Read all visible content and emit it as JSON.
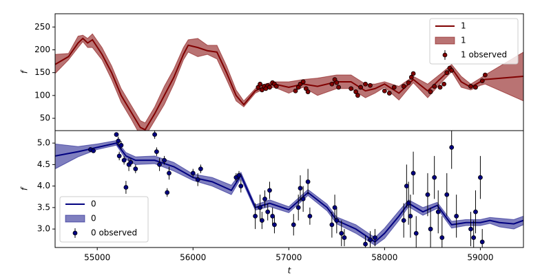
{
  "chart_data": [
    {
      "type": "line",
      "ylabel": "f",
      "xlim": [
        54560,
        59450
      ],
      "ylim": [
        23,
        279
      ],
      "yticks": [
        50,
        100,
        150,
        200,
        250
      ],
      "legend": "upper right",
      "series": [
        {
          "name": "1",
          "type": "line",
          "color": "#800000",
          "x": [
            54560,
            54700,
            54800,
            54850,
            54900,
            54950,
            55050,
            55150,
            55250,
            55350,
            55450,
            55500,
            55600,
            55700,
            55800,
            55900,
            55950,
            56050,
            56150,
            56250,
            56350,
            56450,
            56530,
            56650,
            56750,
            56850,
            57000,
            57150,
            57300,
            57500,
            57650,
            57800,
            57900,
            58000,
            58150,
            58300,
            58450,
            58600,
            58700,
            58800,
            58900,
            59000,
            59050,
            59450
          ],
          "values": [
            168,
            185,
            215,
            225,
            215,
            222,
            190,
            150,
            100,
            65,
            30,
            25,
            60,
            100,
            140,
            190,
            210,
            205,
            198,
            195,
            150,
            100,
            80,
            110,
            120,
            125,
            118,
            125,
            120,
            130,
            130,
            110,
            115,
            125,
            105,
            135,
            110,
            140,
            160,
            130,
            118,
            130,
            135,
            142
          ]
        },
        {
          "name": "1",
          "type": "band",
          "color": "#800000",
          "alpha": 0.55,
          "x": [
            54560,
            54700,
            54800,
            54850,
            54900,
            54950,
            55050,
            55150,
            55250,
            55350,
            55450,
            55500,
            55600,
            55700,
            55800,
            55900,
            55950,
            56050,
            56150,
            56250,
            56350,
            56450,
            56530,
            56650,
            56750,
            56850,
            57000,
            57150,
            57300,
            57500,
            57650,
            57800,
            57900,
            58000,
            58150,
            58300,
            58450,
            58600,
            58700,
            58800,
            58900,
            59000,
            59050,
            59450
          ],
          "lower": [
            148,
            178,
            205,
            218,
            205,
            205,
            178,
            135,
            85,
            50,
            12,
            10,
            45,
            80,
            125,
            178,
            195,
            185,
            190,
            180,
            135,
            88,
            75,
            105,
            115,
            118,
            105,
            118,
            100,
            115,
            115,
            95,
            105,
            118,
            90,
            128,
            95,
            130,
            152,
            118,
            112,
            122,
            125,
            88
          ],
          "upper": [
            190,
            192,
            230,
            232,
            225,
            235,
            205,
            165,
            115,
            80,
            45,
            40,
            75,
            120,
            158,
            205,
            222,
            225,
            210,
            210,
            165,
            112,
            88,
            115,
            125,
            130,
            130,
            135,
            138,
            145,
            145,
            125,
            125,
            130,
            120,
            142,
            125,
            150,
            168,
            142,
            125,
            138,
            145,
            195
          ]
        },
        {
          "name": "1 observed",
          "type": "points",
          "color": "#800000",
          "x": [
            56680,
            56700,
            56720,
            56740,
            56760,
            56780,
            56800,
            56830,
            56850,
            56870,
            57070,
            57100,
            57120,
            57150,
            57180,
            57200,
            57450,
            57480,
            57500,
            57520,
            57650,
            57700,
            57720,
            57750,
            57800,
            57850,
            58000,
            58050,
            58100,
            58200,
            58250,
            58280,
            58300,
            58480,
            58520,
            58580,
            58620,
            58650,
            58680,
            58700,
            58900,
            58950,
            59020,
            59050
          ],
          "values": [
            118,
            125,
            112,
            120,
            115,
            122,
            118,
            128,
            125,
            120,
            110,
            118,
            125,
            130,
            115,
            108,
            125,
            135,
            128,
            118,
            115,
            108,
            100,
            118,
            125,
            122,
            110,
            105,
            118,
            120,
            128,
            140,
            148,
            108,
            120,
            118,
            125,
            150,
            160,
            155,
            120,
            118,
            132,
            145
          ],
          "errors": [
            3,
            3,
            3,
            3,
            3,
            3,
            3,
            3,
            3,
            3,
            3,
            3,
            3,
            3,
            3,
            3,
            3,
            3,
            3,
            3,
            3,
            3,
            3,
            3,
            3,
            3,
            3,
            3,
            3,
            3,
            3,
            3,
            3,
            3,
            3,
            3,
            3,
            3,
            3,
            3,
            3,
            3,
            3,
            3
          ]
        }
      ]
    },
    {
      "type": "line",
      "ylabel": "f",
      "xlabel": "t",
      "xlim": [
        54560,
        59450
      ],
      "ylim": [
        2.57,
        5.29
      ],
      "xticks": [
        55000,
        56000,
        57000,
        58000,
        59000
      ],
      "yticks": [
        {
          "value": 3,
          "label": "3.0"
        },
        3.5,
        {
          "value": 4,
          "label": "4.0"
        },
        4.5,
        {
          "value": 5,
          "label": "5.0"
        }
      ],
      "legend": "lower left",
      "series": [
        {
          "name": "0",
          "type": "line",
          "color": "#000080",
          "x": [
            54560,
            54800,
            55000,
            55200,
            55300,
            55400,
            55600,
            55800,
            56000,
            56200,
            56400,
            56500,
            56650,
            56800,
            57000,
            57200,
            57400,
            57500,
            57700,
            57900,
            58000,
            58150,
            58250,
            58400,
            58550,
            58700,
            58850,
            59000,
            59100,
            59200,
            59350,
            59450
          ],
          "values": [
            4.7,
            4.8,
            4.9,
            5.0,
            4.7,
            4.6,
            4.6,
            4.45,
            4.2,
            4.1,
            3.9,
            4.25,
            3.5,
            3.6,
            3.45,
            3.85,
            3.5,
            3.2,
            3.0,
            2.7,
            2.9,
            3.3,
            3.6,
            3.4,
            3.55,
            3.1,
            3.15,
            3.15,
            3.2,
            3.15,
            3.12,
            3.2
          ]
        },
        {
          "name": "0",
          "type": "band",
          "color": "#000080",
          "alpha": 0.5,
          "x": [
            54560,
            54800,
            55000,
            55200,
            55300,
            55400,
            55600,
            55800,
            56000,
            56200,
            56400,
            56500,
            56650,
            56800,
            57000,
            57200,
            57400,
            57500,
            57700,
            57900,
            58000,
            58150,
            58250,
            58400,
            58550,
            58700,
            58850,
            59000,
            59100,
            59200,
            59350,
            59450
          ],
          "lower": [
            4.4,
            4.68,
            4.85,
            4.95,
            4.62,
            4.5,
            4.52,
            4.35,
            4.13,
            4.0,
            3.8,
            4.18,
            3.44,
            3.52,
            3.38,
            3.78,
            3.42,
            3.12,
            2.9,
            2.62,
            2.78,
            3.2,
            3.52,
            3.32,
            3.48,
            3.02,
            3.08,
            3.08,
            3.13,
            3.05,
            3.0,
            3.1
          ],
          "upper": [
            4.98,
            4.92,
            4.98,
            5.06,
            4.78,
            4.68,
            4.7,
            4.55,
            4.28,
            4.2,
            4.02,
            4.32,
            3.56,
            3.68,
            3.52,
            3.92,
            3.58,
            3.28,
            3.1,
            2.8,
            3.02,
            3.42,
            3.68,
            3.5,
            3.62,
            3.18,
            3.22,
            3.22,
            3.27,
            3.25,
            3.22,
            3.3
          ]
        },
        {
          "name": "0 observed",
          "type": "points",
          "color": "#000080",
          "x": [
            54930,
            54960,
            55200,
            55220,
            55250,
            55230,
            55280,
            55330,
            55300,
            55350,
            55400,
            55600,
            55620,
            55650,
            55700,
            55730,
            55750,
            56000,
            56050,
            56080,
            56450,
            56500,
            56480,
            56650,
            56700,
            56720,
            56750,
            56780,
            56800,
            56830,
            56850,
            57050,
            57100,
            57120,
            57150,
            57200,
            57220,
            57450,
            57480,
            57500,
            57550,
            57580,
            57800,
            57850,
            57900,
            58200,
            58230,
            58250,
            58270,
            58300,
            58330,
            58450,
            58480,
            58520,
            58560,
            58600,
            58650,
            58700,
            58750,
            58900,
            58930,
            58950,
            59000,
            59020
          ],
          "values": [
            4.85,
            4.82,
            5.2,
            5.05,
            4.95,
            4.7,
            4.6,
            4.5,
            3.97,
            4.55,
            4.4,
            5.2,
            4.8,
            4.5,
            4.6,
            3.85,
            4.3,
            4.3,
            4.15,
            4.4,
            4.2,
            4.0,
            4.25,
            3.3,
            3.5,
            3.2,
            3.7,
            3.4,
            3.9,
            3.3,
            3.1,
            3.1,
            3.5,
            3.95,
            3.7,
            4.1,
            3.3,
            3.1,
            3.5,
            3.2,
            2.9,
            2.8,
            2.65,
            2.75,
            2.8,
            3.2,
            4.0,
            3.6,
            3.3,
            4.3,
            2.9,
            3.8,
            3.0,
            4.2,
            3.4,
            2.8,
            3.8,
            4.9,
            3.3,
            3.0,
            2.8,
            3.4,
            4.2,
            2.7
          ],
          "errors": [
            0.05,
            0.05,
            0.05,
            0.1,
            0.1,
            0.1,
            0.1,
            0.15,
            0.15,
            0.1,
            0.1,
            0.1,
            0.1,
            0.15,
            0.1,
            0.1,
            0.15,
            0.1,
            0.15,
            0.1,
            0.1,
            0.15,
            0.1,
            0.3,
            0.3,
            0.2,
            0.2,
            0.2,
            0.2,
            0.2,
            0.2,
            0.25,
            0.3,
            0.3,
            0.3,
            0.3,
            0.2,
            0.3,
            0.3,
            0.3,
            0.3,
            0.2,
            0.2,
            0.2,
            0.2,
            0.4,
            0.5,
            0.5,
            0.5,
            0.5,
            0.4,
            0.5,
            0.5,
            0.5,
            0.5,
            0.5,
            0.5,
            0.5,
            0.5,
            0.4,
            0.4,
            0.5,
            0.5,
            0.3
          ]
        }
      ]
    }
  ]
}
